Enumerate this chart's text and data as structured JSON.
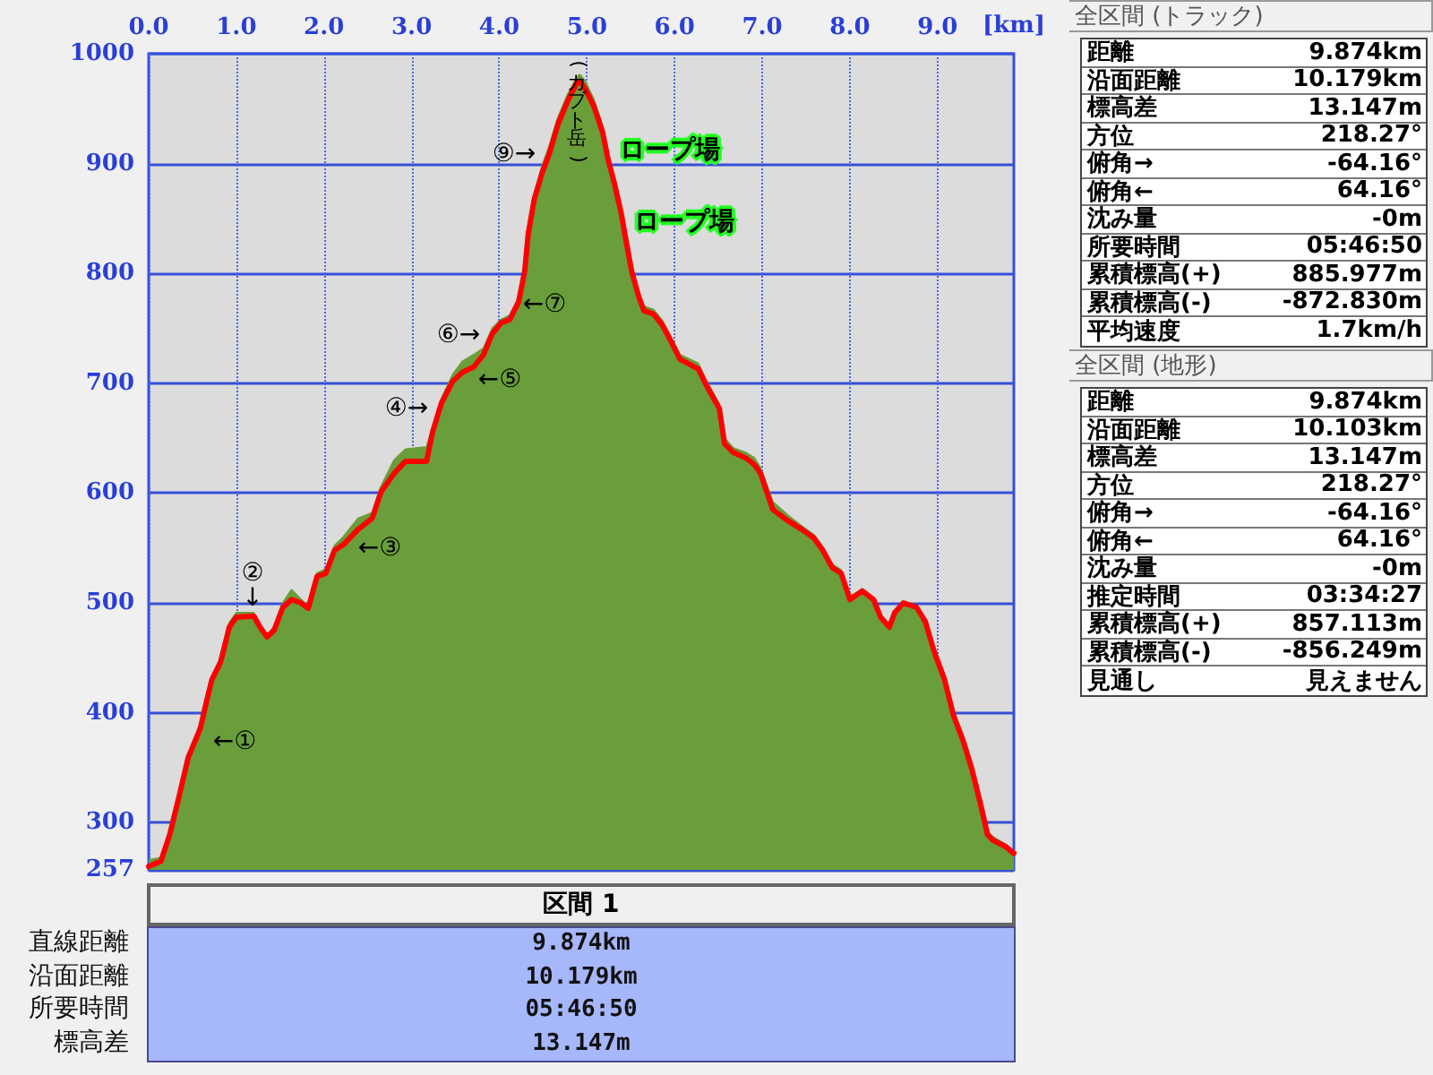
{
  "chart_data": [
    {
      "type": "area",
      "xlabel": "[km]",
      "x": [
        0,
        0.14,
        0.24,
        0.35,
        0.45,
        0.59,
        0.65,
        0.72,
        0.82,
        0.92,
        1.0,
        1.2,
        1.27,
        1.35,
        1.43,
        1.53,
        1.63,
        1.74,
        1.82,
        1.92,
        2.02,
        2.12,
        2.22,
        2.39,
        2.55,
        2.65,
        2.8,
        2.93,
        3.17,
        3.24,
        3.34,
        3.47,
        3.58,
        3.71,
        3.82,
        3.92,
        4.02,
        4.12,
        4.22,
        4.29,
        4.33,
        4.4,
        4.49,
        4.57,
        4.67,
        4.78,
        4.88,
        4.92,
        4.98,
        5.08,
        5.18,
        5.24,
        5.31,
        5.39,
        5.45,
        5.51,
        5.59,
        5.65,
        5.76,
        5.86,
        5.96,
        6.06,
        6.27,
        6.37,
        6.51,
        6.57,
        6.67,
        6.81,
        6.91,
        6.98,
        7.12,
        7.29,
        7.45,
        7.59,
        7.69,
        7.8,
        7.9,
        8.0,
        8.14,
        8.27,
        8.35,
        8.45,
        8.51,
        8.61,
        8.76,
        8.86,
        8.96,
        9.08,
        9.18,
        9.29,
        9.39,
        9.49,
        9.57,
        9.63,
        9.78,
        9.87
      ],
      "series": [
        {
          "color": "#6a9e3a",
          "values": [
            266,
            268,
            292,
            328,
            362,
            390,
            410,
            433,
            450,
            482,
            491,
            491,
            480,
            471,
            478,
            500,
            512,
            503,
            497,
            527,
            531,
            552,
            560,
            577,
            582,
            606,
            630,
            640,
            642,
            660,
            686,
            708,
            720,
            726,
            732,
            750,
            758,
            762,
            778,
            806,
            842,
            872,
            898,
            916,
            942,
            963,
            978,
            981,
            975,
            958,
            934,
            910,
            888,
            860,
            833,
            806,
            783,
            770,
            767,
            757,
            742,
            726,
            718,
            701,
            681,
            650,
            641,
            637,
            632,
            623,
            592,
            580,
            570,
            562,
            551,
            535,
            530,
            506,
            512,
            504,
            485,
            476,
            487,
            497,
            494,
            484,
            458,
            433,
            401,
            378,
            352,
            320,
            292,
            287,
            280,
            274
          ]
        },
        {
          "type": "line",
          "color": "#ff0000",
          "values": [
            260,
            265,
            289,
            325,
            359,
            386,
            407,
            430,
            446,
            478,
            487,
            488,
            478,
            469,
            475,
            496,
            503,
            500,
            495,
            524,
            527,
            548,
            553,
            567,
            577,
            601,
            618,
            629,
            629,
            656,
            682,
            702,
            710,
            715,
            726,
            745,
            755,
            758,
            774,
            802,
            836,
            868,
            892,
            909,
            936,
            957,
            973,
            975,
            968,
            952,
            928,
            904,
            883,
            855,
            828,
            802,
            779,
            766,
            763,
            753,
            738,
            722,
            713,
            697,
            677,
            645,
            637,
            632,
            626,
            618,
            585,
            575,
            567,
            559,
            548,
            532,
            527,
            503,
            511,
            503,
            487,
            478,
            491,
            500,
            496,
            483,
            456,
            430,
            398,
            375,
            349,
            317,
            289,
            284,
            278,
            272
          ]
        }
      ],
      "xlim": [
        0,
        9.87
      ],
      "xticks": [
        {
          "value": 0,
          "label": "0.0"
        },
        {
          "value": 1,
          "label": "1.0"
        },
        {
          "value": 2,
          "label": "2.0"
        },
        {
          "value": 3,
          "label": "3.0"
        },
        {
          "value": 4,
          "label": "4.0"
        },
        {
          "value": 5,
          "label": "5.0"
        },
        {
          "value": 6,
          "label": "6.0"
        },
        {
          "value": 7,
          "label": "7.0"
        },
        {
          "value": 8,
          "label": "8.0"
        },
        {
          "value": 9,
          "label": "9.0"
        }
      ],
      "ylim": [
        257,
        1000
      ],
      "yticks": [
        257,
        300,
        400,
        500,
        600,
        700,
        800,
        900,
        1000
      ],
      "grid": true,
      "annotations": [
        "(カブト岳)",
        "←①",
        "②\n↓",
        "←③",
        "④→",
        "←⑤",
        "⑥→",
        "←⑦",
        "⑨→",
        "ロープ場",
        "ロープ場"
      ]
    },
    {
      "type": "other",
      "title": "全区間 (トラック)",
      "categories": [
        "距離",
        "沿面距離",
        "標高差",
        "方位",
        "俯角→",
        "俯角←",
        "沈み量",
        "所要時間",
        "累積標高(+)",
        "累積標高(-)",
        "平均速度"
      ],
      "value_labels": [
        "9.874km",
        "10.179km",
        "13.147m",
        "218.27°",
        "-64.16°",
        "64.16°",
        "-0m",
        "05:46:50",
        "885.977m",
        "-872.830m",
        "1.7km/h"
      ]
    },
    {
      "type": "other",
      "title": "全区間 (地形)",
      "categories": [
        "距離",
        "沿面距離",
        "標高差",
        "方位",
        "俯角→",
        "俯角←",
        "沈み量",
        "推定時間",
        "累積標高(+)",
        "累積標高(-)",
        "見通し"
      ],
      "value_labels": [
        "9.874km",
        "10.103km",
        "13.147m",
        "218.27°",
        "-64.16°",
        "64.16°",
        "-0m",
        "03:34:27",
        "857.113m",
        "-856.249m",
        "見えません"
      ]
    },
    {
      "type": "other",
      "title": "区間 1",
      "categories": [
        "直線距離",
        "沿面距離",
        "所要時間",
        "標高差"
      ],
      "value_labels": [
        "9.874km",
        "10.179km",
        "05:46:50",
        "13.147m"
      ]
    }
  ]
}
